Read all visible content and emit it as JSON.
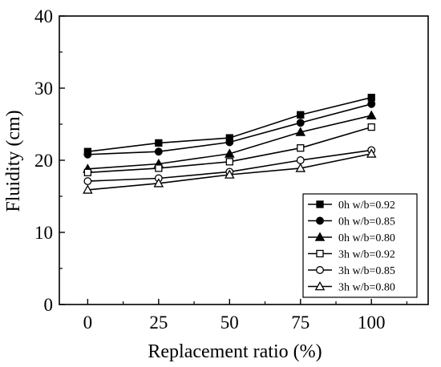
{
  "chart_data": {
    "type": "line",
    "title": "",
    "xlabel": "Replacement ratio (%)",
    "ylabel": "Fluidity (cm)",
    "x": [
      0,
      25,
      50,
      75,
      100
    ],
    "x_ticks": [
      "0",
      "25",
      "50",
      "75",
      "100"
    ],
    "y_ticks": [
      "0",
      "10",
      "20",
      "30",
      "40"
    ],
    "xlim": [
      -10,
      120
    ],
    "ylim": [
      0,
      40
    ],
    "grid": false,
    "legend_position": "bottom-right",
    "series": [
      {
        "name": "0h w/b=0.92",
        "marker": "square-filled",
        "values": [
          21.2,
          22.4,
          23.1,
          26.3,
          28.7
        ]
      },
      {
        "name": "0h w/b=0.85",
        "marker": "circle-filled",
        "values": [
          20.8,
          21.2,
          22.5,
          25.2,
          27.8
        ]
      },
      {
        "name": "0h w/b=0.80",
        "marker": "triangle-filled",
        "values": [
          18.8,
          19.5,
          20.9,
          23.9,
          26.2
        ]
      },
      {
        "name": "3h w/b=0.92",
        "marker": "square-open",
        "values": [
          18.3,
          18.9,
          19.8,
          21.7,
          24.6
        ]
      },
      {
        "name": "3h w/b=0.85",
        "marker": "circle-open",
        "values": [
          17.1,
          17.5,
          18.4,
          20.0,
          21.4
        ]
      },
      {
        "name": "3h w/b=0.80",
        "marker": "triangle-open",
        "values": [
          15.9,
          16.8,
          18.0,
          18.9,
          20.9
        ]
      }
    ]
  }
}
